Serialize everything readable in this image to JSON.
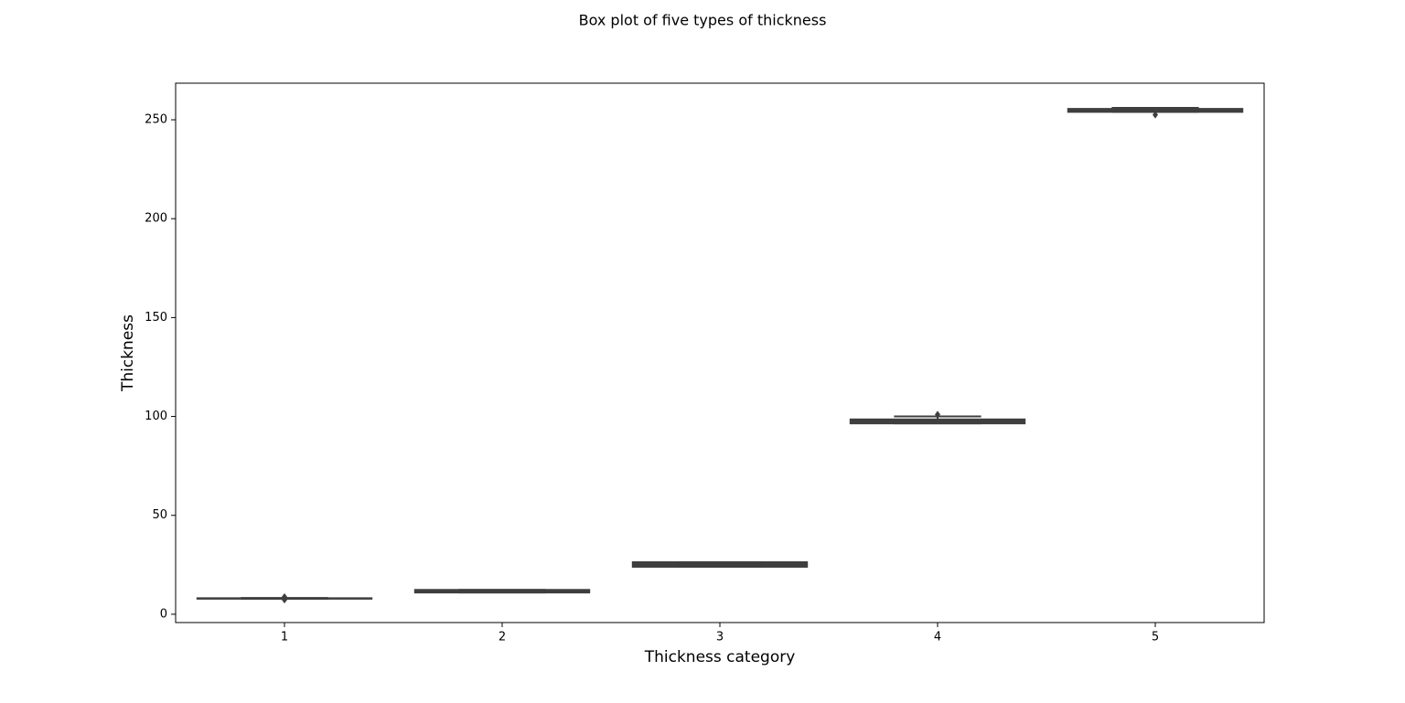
{
  "chart_data": {
    "type": "box",
    "title": "Box plot of five types of thickness",
    "x_label": "Thickness category",
    "y_label": "Thickness",
    "categories": [
      "1",
      "2",
      "3",
      "4",
      "5"
    ],
    "boxes": [
      {
        "low": 7.8,
        "q1": 7.9,
        "median": 8,
        "q3": 8.1,
        "high": 8.2,
        "outliers": [
          7.3,
          8.8
        ]
      },
      {
        "low": 11,
        "q1": 11,
        "median": 11.7,
        "q3": 12.3,
        "high": 12.3,
        "outliers": []
      },
      {
        "low": 24,
        "q1": 24,
        "median": 25.2,
        "q3": 26.3,
        "high": 26.3,
        "outliers": []
      },
      {
        "low": 96.5,
        "q1": 96.5,
        "median": 97.5,
        "q3": 98.5,
        "high": 100,
        "outliers": [
          101
        ]
      },
      {
        "low": 254,
        "q1": 254,
        "median": 254.5,
        "q3": 255.5,
        "high": 256,
        "outliers": [
          252.5
        ]
      }
    ],
    "color": "#3f3f3f",
    "edge_color": "#3f3f3f",
    "ylim": [
      -4.2,
      268.5
    ],
    "yticks": [
      0,
      50,
      100,
      150,
      200,
      250
    ]
  }
}
